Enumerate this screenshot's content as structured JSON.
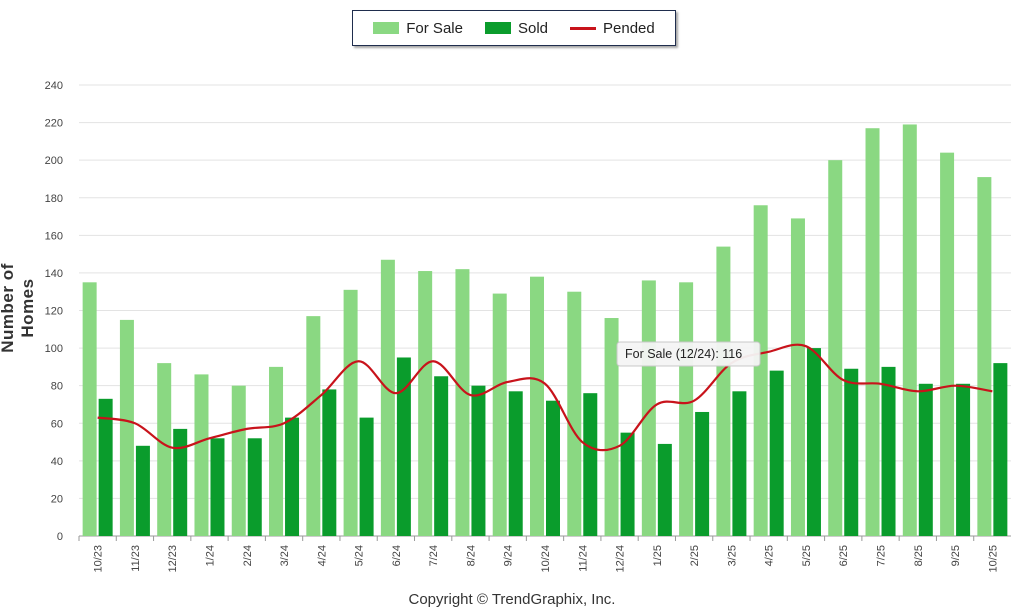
{
  "chart_data": {
    "type": "bar",
    "categories": [
      "10/23",
      "11/23",
      "12/23",
      "1/24",
      "2/24",
      "3/24",
      "4/24",
      "5/24",
      "6/24",
      "7/24",
      "8/24",
      "9/24",
      "10/24",
      "11/24",
      "12/24",
      "1/25",
      "2/25",
      "3/25",
      "4/25",
      "5/25",
      "6/25",
      "7/25",
      "8/25",
      "9/25",
      "10/25"
    ],
    "series": [
      {
        "name": "For Sale",
        "type": "bar",
        "color": "#8ad882",
        "values": [
          135,
          115,
          92,
          86,
          80,
          90,
          117,
          131,
          147,
          141,
          142,
          129,
          138,
          130,
          116,
          136,
          135,
          154,
          176,
          169,
          200,
          217,
          219,
          204,
          191
        ]
      },
      {
        "name": "Sold",
        "type": "bar",
        "color": "#0a9c2c",
        "values": [
          73,
          48,
          57,
          52,
          52,
          63,
          78,
          63,
          95,
          85,
          80,
          77,
          72,
          76,
          55,
          49,
          66,
          77,
          88,
          100,
          89,
          90,
          81,
          81,
          92
        ]
      },
      {
        "name": "Pended",
        "type": "line",
        "color": "#c8131b",
        "values": [
          63,
          60,
          47,
          52,
          57,
          60,
          75,
          93,
          76,
          93,
          75,
          82,
          81,
          50,
          48,
          70,
          72,
          92,
          98,
          101,
          83,
          81,
          77,
          80,
          77
        ]
      }
    ],
    "ylabel": "Number of Homes",
    "ylim": [
      0,
      240
    ],
    "yticks": [
      0,
      20,
      40,
      60,
      80,
      100,
      120,
      140,
      160,
      180,
      200,
      220,
      240
    ],
    "legend_position": "top-center",
    "grid": true,
    "tooltip": {
      "text": "For Sale (12/24): 116"
    }
  },
  "footer": {
    "copyright": "Copyright © TrendGraphix, Inc."
  }
}
